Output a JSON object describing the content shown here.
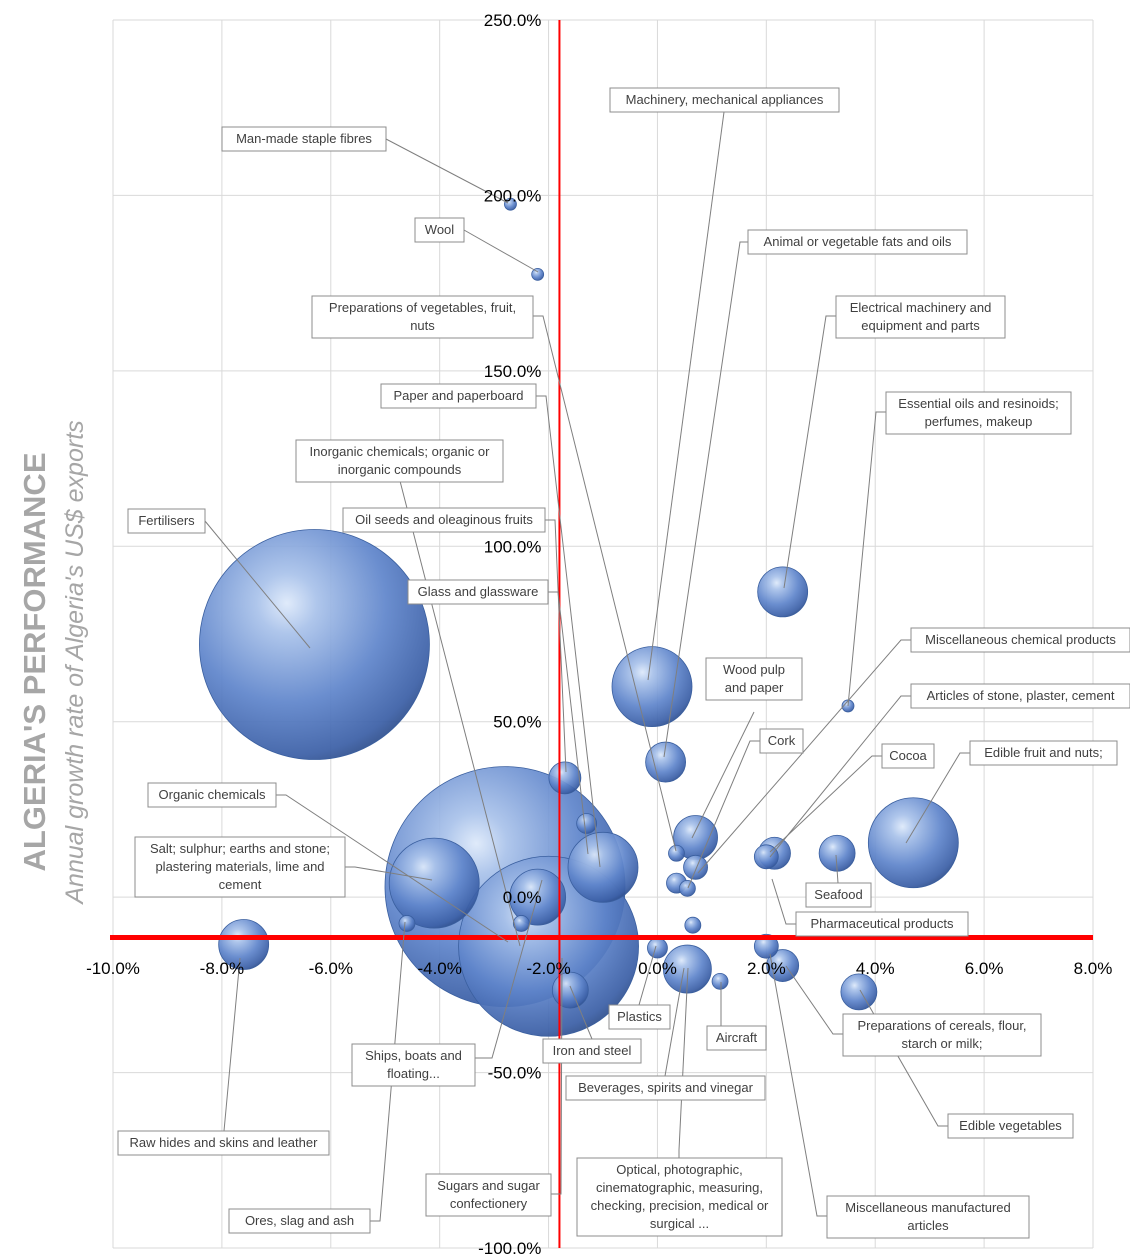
{
  "chart_data": {
    "type": "bubble",
    "title": "",
    "ylabel_main": "ALGERIA'S PERFORMANCE",
    "ylabel_sub": "Annual growth rate of Algeria's US$ exports",
    "xlim": [
      -10,
      8
    ],
    "ylim": [
      -100,
      250
    ],
    "x_tick_labels": [
      "-10.0%",
      "-8.0%",
      "-6.0%",
      "-4.0%",
      "-2.0%",
      "0.0%",
      "2.0%",
      "4.0%",
      "6.0%",
      "8.0%"
    ],
    "y_tick_labels": [
      "-100.0%",
      "-50.0%",
      "0.0%",
      "50.0%",
      "100.0%",
      "150.0%",
      "200.0%",
      "250.0%"
    ],
    "grid": true,
    "reference_lines": {
      "x": -1.8,
      "y": -11.5,
      "color": "#ff0000"
    },
    "bubble_color": "#4f81bd",
    "points": [
      {
        "name": "Man-made staple fibres",
        "x": -2.7,
        "y": 197.5,
        "size": 6
      },
      {
        "name": "Wool",
        "x": -2.2,
        "y": 177.5,
        "size": 6
      },
      {
        "name": "Fertilisers",
        "x": -6.3,
        "y": 72,
        "size": 115
      },
      {
        "name": "Machinery, mechanical appliances",
        "x": -0.1,
        "y": 60,
        "size": 40
      },
      {
        "name": "Animal or vegetable fats and oils",
        "x": 0.15,
        "y": 38.5,
        "size": 20
      },
      {
        "name": "Electrical machinery and equipment and parts",
        "x": 2.3,
        "y": 87,
        "size": 25
      },
      {
        "name": "Essential oils and resinoids; perfumes, makeup",
        "x": 3.5,
        "y": 54.5,
        "size": 6
      },
      {
        "name": "Miscellaneous chemical products",
        "x": 0.7,
        "y": 8.5,
        "size": 12
      },
      {
        "name": "Articles of stone, plaster, cement",
        "x": 2.0,
        "y": 11.5,
        "size": 12
      },
      {
        "name": "Cocoa",
        "x": 2.15,
        "y": 12.5,
        "size": 16
      },
      {
        "name": "Edible fruit and nuts;",
        "x": 4.7,
        "y": 15.5,
        "size": 45
      },
      {
        "name": "Seafood",
        "x": 3.3,
        "y": 12.5,
        "size": 18
      },
      {
        "name": "Pharmaceutical products",
        "x": 0.65,
        "y": -8,
        "size": 8
      },
      {
        "name": "Wood pulp and paper",
        "x": 0.7,
        "y": 17,
        "size": 22
      },
      {
        "name": "Cork",
        "x": 0.55,
        "y": 2.5,
        "size": 8
      },
      {
        "name": "Preparations of vegetables, fruit, nuts",
        "x": 0.35,
        "y": 12.5,
        "size": 8
      },
      {
        "name": "Paper and paperboard",
        "x": -1.0,
        "y": 8.5,
        "size": 35
      },
      {
        "name": "Inorganic chemicals; organic or inorganic compounds",
        "x": -2.0,
        "y": -14,
        "size": 90
      },
      {
        "name": "Oil seeds and oleaginous fruits",
        "x": -1.7,
        "y": 34,
        "size": 16
      },
      {
        "name": "Glass and glassware",
        "x": -1.3,
        "y": 21,
        "size": 10
      },
      {
        "name": "Organic chemicals",
        "x": -2.8,
        "y": 3,
        "size": 120
      },
      {
        "name": "Salt; sulphur; earths and stone; plastering materials, lime and cement",
        "x": -4.1,
        "y": 4,
        "size": 45
      },
      {
        "name": "Raw hides and skins and leather",
        "x": -7.6,
        "y": -13.5,
        "size": 25
      },
      {
        "name": "Ores, slag and ash",
        "x": -4.6,
        "y": -7.5,
        "size": 8
      },
      {
        "name": "Ships, boats and floating...",
        "x": -2.2,
        "y": 0,
        "size": 28
      },
      {
        "name": "Sugars and sugar confectionery",
        "x": -2.5,
        "y": -7.5,
        "size": 8
      },
      {
        "name": "Iron and steel",
        "x": -1.6,
        "y": -26.5,
        "size": 18
      },
      {
        "name": "Plastics",
        "x": 0.0,
        "y": -14.5,
        "size": 10
      },
      {
        "name": "Beverages, spirits and vinegar",
        "x": 0.55,
        "y": -20.5,
        "size": 24
      },
      {
        "name": "Optical, photographic, cinematographic, measuring, checking, precision, medical or surgical ...",
        "x": 0.35,
        "y": 4,
        "size": 10
      },
      {
        "name": "Aircraft",
        "x": 1.15,
        "y": -24,
        "size": 8
      },
      {
        "name": "Miscellaneous manufactured articles",
        "x": 2.0,
        "y": -14,
        "size": 12
      },
      {
        "name": "Preparations of cereals, flour, starch or milk;",
        "x": 2.3,
        "y": -19.5,
        "size": 16
      },
      {
        "name": "Edible vegetables",
        "x": 3.7,
        "y": -27,
        "size": 18
      }
    ],
    "labels": [
      {
        "text": [
          "Machinery, mechanical appliances"
        ]
      },
      {
        "text": [
          "Man-made staple fibres"
        ]
      },
      {
        "text": [
          "Wool"
        ]
      },
      {
        "text": [
          "Animal or vegetable fats and oils"
        ]
      },
      {
        "text": [
          "Electrical machinery and",
          "equipment and parts"
        ]
      },
      {
        "text": [
          "Preparations of vegetables, fruit,",
          "nuts"
        ]
      },
      {
        "text": [
          "Paper and paperboard"
        ]
      },
      {
        "text": [
          "Essential oils and resinoids;",
          "perfumes, makeup"
        ]
      },
      {
        "text": [
          "Inorganic chemicals; organic or",
          "inorganic compounds"
        ]
      },
      {
        "text": [
          "Fertilisers"
        ]
      },
      {
        "text": [
          "Oil seeds and oleaginous fruits"
        ]
      },
      {
        "text": [
          "Glass and glassware"
        ]
      },
      {
        "text": [
          "Miscellaneous chemical products"
        ]
      },
      {
        "text": [
          "Wood pulp",
          "and paper"
        ]
      },
      {
        "text": [
          "Articles of stone, plaster, cement"
        ]
      },
      {
        "text": [
          "Cork"
        ]
      },
      {
        "text": [
          "Cocoa"
        ]
      },
      {
        "text": [
          "Edible fruit and nuts;"
        ]
      },
      {
        "text": [
          "Organic chemicals"
        ]
      },
      {
        "text": [
          "Salt; sulphur; earths and stone;",
          "plastering materials, lime and",
          "cement"
        ]
      },
      {
        "text": [
          "Seafood"
        ]
      },
      {
        "text": [
          "Pharmaceutical products"
        ]
      },
      {
        "text": [
          "Plastics"
        ]
      },
      {
        "text": [
          "Aircraft"
        ]
      },
      {
        "text": [
          "Iron and steel"
        ]
      },
      {
        "text": [
          "Preparations of cereals, flour,",
          "starch or milk;"
        ]
      },
      {
        "text": [
          "Ships, boats and",
          "floating..."
        ]
      },
      {
        "text": [
          "Beverages, spirits and vinegar"
        ]
      },
      {
        "text": [
          "Edible vegetables"
        ]
      },
      {
        "text": [
          "Raw hides and skins and leather"
        ]
      },
      {
        "text": [
          "Optical, photographic,",
          "cinematographic, measuring,",
          "checking, precision, medical or",
          "surgical ..."
        ]
      },
      {
        "text": [
          "Sugars and sugar",
          "confectionery"
        ]
      },
      {
        "text": [
          "Miscellaneous manufactured",
          "articles"
        ]
      },
      {
        "text": [
          "Ores, slag and ash"
        ]
      }
    ]
  }
}
